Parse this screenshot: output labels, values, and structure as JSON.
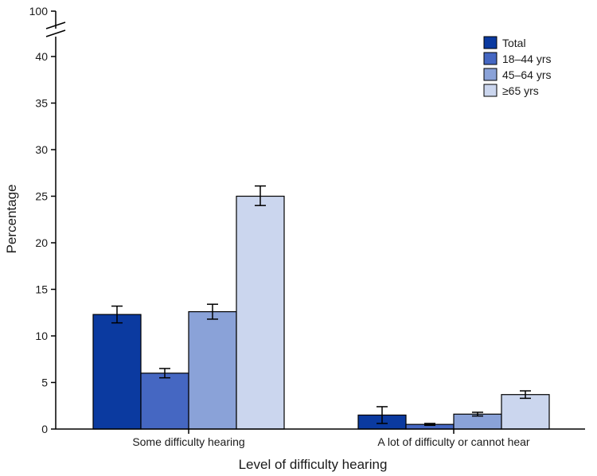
{
  "chart_data": {
    "type": "bar",
    "categories": [
      "Some difficulty hearing",
      "A lot of difficulty or cannot hear"
    ],
    "xlabel": "Level of difficulty hearing",
    "ylabel": "Percentage",
    "ylim": [
      0,
      40
    ],
    "axis_break": {
      "display_top_label": "100"
    },
    "yticks": [
      0,
      5,
      10,
      15,
      20,
      25,
      30,
      35,
      40
    ],
    "legend_position": "top-right",
    "grid": false,
    "series": [
      {
        "name": "Total",
        "color": "#0b3aa0",
        "values": [
          12.3,
          1.5
        ],
        "ci_low": [
          11.4,
          0.6
        ],
        "ci_high": [
          13.2,
          2.4
        ]
      },
      {
        "name": "18–44 yrs",
        "color": "#4567c2",
        "values": [
          6.0,
          0.5
        ],
        "ci_low": [
          5.5,
          0.4
        ],
        "ci_high": [
          6.5,
          0.6
        ]
      },
      {
        "name": "45–64 yrs",
        "color": "#8aa2d8",
        "values": [
          12.6,
          1.6
        ],
        "ci_low": [
          11.8,
          1.4
        ],
        "ci_high": [
          13.4,
          1.8
        ]
      },
      {
        "name": "≥65 yrs",
        "color": "#cbd6ee",
        "values": [
          25.0,
          3.7
        ],
        "ci_low": [
          24.0,
          3.3
        ],
        "ci_high": [
          26.1,
          4.1
        ]
      }
    ]
  }
}
